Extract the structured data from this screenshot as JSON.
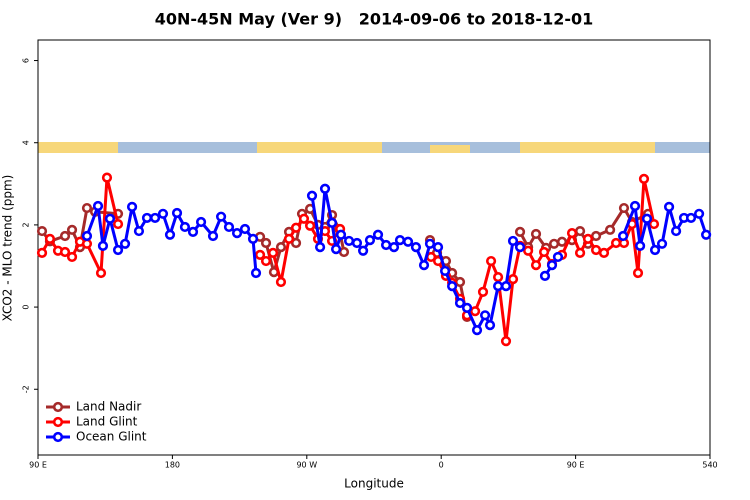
{
  "chart_data": {
    "type": "line",
    "title": "40N-45N May (Ver 9)   2014-09-06 to 2018-12-01",
    "xlabel": "Longitude",
    "ylabel": "XCO2 - MLO trend (ppm)",
    "xlim": [
      90,
      540
    ],
    "xticks": [
      {
        "value": 90,
        "label": "90 E"
      },
      180,
      {
        "value": 270,
        "label": "90 W"
      },
      {
        "value": 360,
        "label": "0"
      },
      {
        "value": 450,
        "label": "90 E"
      },
      540
    ],
    "ylim": [
      -3.6,
      6.5
    ],
    "yticks": [
      -2,
      0,
      2,
      4,
      6
    ],
    "legend": "bottom-left",
    "series": [
      {
        "name": "Land Nadir",
        "color": "#a52a2a",
        "x": [
          92.7,
          98.0,
          108.1,
          112.8,
          118.1,
          122.8,
          128.2,
          143.6,
          null,
          238.7,
          242.7,
          248.0,
          252.7,
          258.1,
          262.8,
          266.8,
          272.2,
          277.5,
          282.2,
          286.9,
          291.6,
          294.9,
          null,
          352.5,
          357.2,
          363.2,
          367.3,
          372.6,
          377.3,
          null,
          412.8,
          418.2,
          423.5,
          430.2,
          435.6,
          440.9,
          447.6,
          453.0,
          458.3,
          463.7,
          473.1,
          482.4,
          487.8,
          498.5
        ],
        "values": [
          1.85,
          1.6,
          1.73,
          1.88,
          1.46,
          2.41,
          2.32,
          2.27,
          null,
          1.71,
          1.56,
          0.85,
          1.46,
          1.83,
          1.56,
          2.27,
          2.39,
          2.0,
          1.95,
          2.24,
          1.9,
          1.34,
          null,
          1.63,
          1.32,
          1.12,
          0.83,
          0.61,
          -0.24,
          null,
          1.83,
          1.46,
          1.78,
          1.44,
          1.54,
          1.59,
          1.63,
          1.85,
          1.54,
          1.73,
          1.88,
          2.41,
          2.07,
          2.27
        ]
      },
      {
        "name": "Land Glint",
        "color": "#ff0000",
        "x": [
          92.7,
          98.0,
          103.4,
          108.1,
          112.8,
          118.1,
          122.8,
          132.2,
          136.2,
          143.6,
          null,
          238.7,
          242.7,
          247.4,
          252.7,
          258.1,
          262.8,
          268.1,
          272.2,
          277.5,
          282.2,
          286.9,
          292.3,
          null,
          353.2,
          357.9,
          363.2,
          367.3,
          372.6,
          377.3,
          382.7,
          388.0,
          393.4,
          398.1,
          403.4,
          408.1,
          412.8,
          418.2,
          423.5,
          428.9,
          434.2,
          440.9,
          447.6,
          453.0,
          458.3,
          463.7,
          469.0,
          477.1,
          482.4,
          487.8,
          491.8,
          495.8,
          502.5
        ],
        "values": [
          1.32,
          1.66,
          1.37,
          1.34,
          1.22,
          1.59,
          1.54,
          0.83,
          3.15,
          2.02,
          null,
          1.27,
          1.12,
          1.32,
          0.61,
          1.66,
          1.93,
          2.15,
          1.98,
          1.66,
          1.85,
          1.61,
          1.9,
          null,
          1.22,
          1.12,
          0.76,
          0.59,
          0.2,
          -0.2,
          -0.1,
          0.37,
          1.12,
          0.73,
          -0.83,
          0.68,
          1.49,
          1.37,
          1.02,
          1.34,
          1.05,
          1.27,
          1.8,
          1.32,
          1.66,
          1.39,
          1.32,
          1.56,
          1.56,
          2.02,
          0.83,
          3.12,
          2.02
        ]
      },
      {
        "name": "Ocean Glint",
        "color": "#0000ff",
        "x": [
          122.8,
          130.2,
          133.5,
          138.2,
          143.6,
          148.3,
          153.0,
          157.6,
          163.0,
          168.4,
          173.7,
          178.4,
          183.1,
          188.4,
          193.8,
          199.2,
          207.2,
          212.6,
          217.9,
          223.3,
          228.6,
          234.0,
          236.0,
          null,
          273.5,
          278.9,
          282.2,
          286.9,
          289.6,
          292.9,
          298.3,
          303.6,
          307.7,
          312.3,
          317.7,
          323.1,
          328.4,
          332.4,
          337.8,
          343.1,
          348.5,
          352.5,
          357.9,
          362.6,
          367.3,
          372.6,
          377.3,
          384.0,
          389.4,
          392.7,
          398.1,
          403.4,
          408.1,
          412.8,
          null,
          429.5,
          434.2,
          438.2,
          null,
          481.8,
          489.8,
          493.2,
          497.8,
          503.2,
          507.9,
          512.6,
          517.3,
          522.6,
          527.3,
          532.7,
          537.4
        ],
        "values": [
          1.73,
          2.46,
          1.49,
          2.15,
          1.39,
          1.54,
          2.44,
          1.85,
          2.17,
          2.17,
          2.27,
          1.76,
          2.29,
          1.95,
          1.83,
          2.07,
          1.73,
          2.2,
          1.95,
          1.8,
          1.9,
          1.66,
          0.83,
          null,
          2.71,
          1.46,
          2.88,
          2.05,
          1.41,
          1.76,
          1.61,
          1.56,
          1.37,
          1.63,
          1.76,
          1.51,
          1.46,
          1.63,
          1.59,
          1.46,
          1.02,
          1.54,
          1.46,
          0.88,
          0.51,
          0.1,
          -0.02,
          -0.56,
          -0.2,
          -0.44,
          0.51,
          0.51,
          1.61,
          1.46,
          null,
          0.76,
          1.02,
          1.22,
          null,
          1.73,
          2.46,
          1.49,
          2.15,
          1.39,
          1.54,
          2.44,
          1.85,
          2.17,
          2.17,
          2.27,
          1.76
        ]
      }
    ]
  }
}
